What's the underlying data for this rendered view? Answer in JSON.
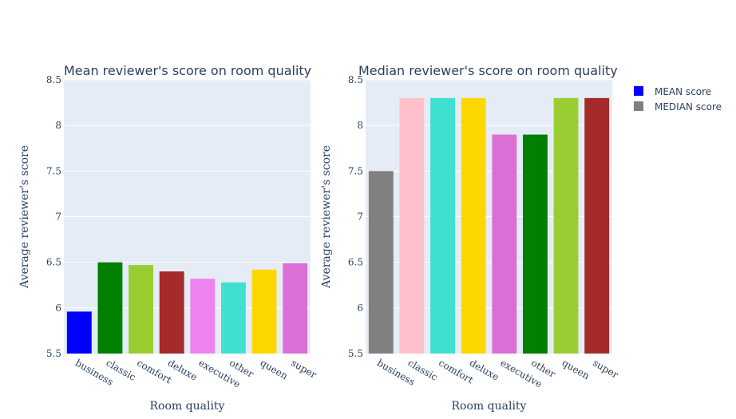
{
  "chart_data": [
    {
      "type": "bar",
      "title": "Mean reviewer's score on room quality",
      "xlabel": "Room quality",
      "ylabel": "Average reviewer's score",
      "ylim": [
        5.5,
        8.5
      ],
      "yticks": [
        "5.5",
        "6",
        "6.5",
        "7",
        "7.5",
        "8",
        "8.5"
      ],
      "categories": [
        "business",
        "classic",
        "comfort",
        "deluxe",
        "executive",
        "other",
        "queen",
        "super"
      ],
      "values": [
        5.96,
        6.5,
        6.47,
        6.4,
        6.32,
        6.28,
        6.42,
        6.49
      ],
      "colors": [
        "#0000ff",
        "#008000",
        "#9acd32",
        "#a52a2a",
        "#ee82ee",
        "#40e0d0",
        "#ffd700",
        "#da70d6"
      ],
      "series_name": "MEAN score",
      "grid": true
    },
    {
      "type": "bar",
      "title": "Median reviewer's score on room quality",
      "xlabel": "Room quality",
      "ylabel": "Average reviewer's score",
      "ylim": [
        5.5,
        8.5
      ],
      "yticks": [
        "5.5",
        "6",
        "6.5",
        "7",
        "7.5",
        "8",
        "8.5"
      ],
      "categories": [
        "business",
        "classic",
        "comfort",
        "deluxe",
        "executive",
        "other",
        "queen",
        "super"
      ],
      "values": [
        7.5,
        8.3,
        8.3,
        8.3,
        7.9,
        7.9,
        8.3,
        8.3
      ],
      "colors": [
        "#808080",
        "#ffc0cb",
        "#40e0d0",
        "#ffd700",
        "#da70d6",
        "#008000",
        "#9acd32",
        "#a52a2a"
      ],
      "series_name": "MEDIAN score",
      "grid": true
    }
  ],
  "legend": {
    "placement": "top-right",
    "items": [
      {
        "label": "MEAN score",
        "color": "#0000ff"
      },
      {
        "label": "MEDIAN score",
        "color": "#808080"
      }
    ]
  }
}
